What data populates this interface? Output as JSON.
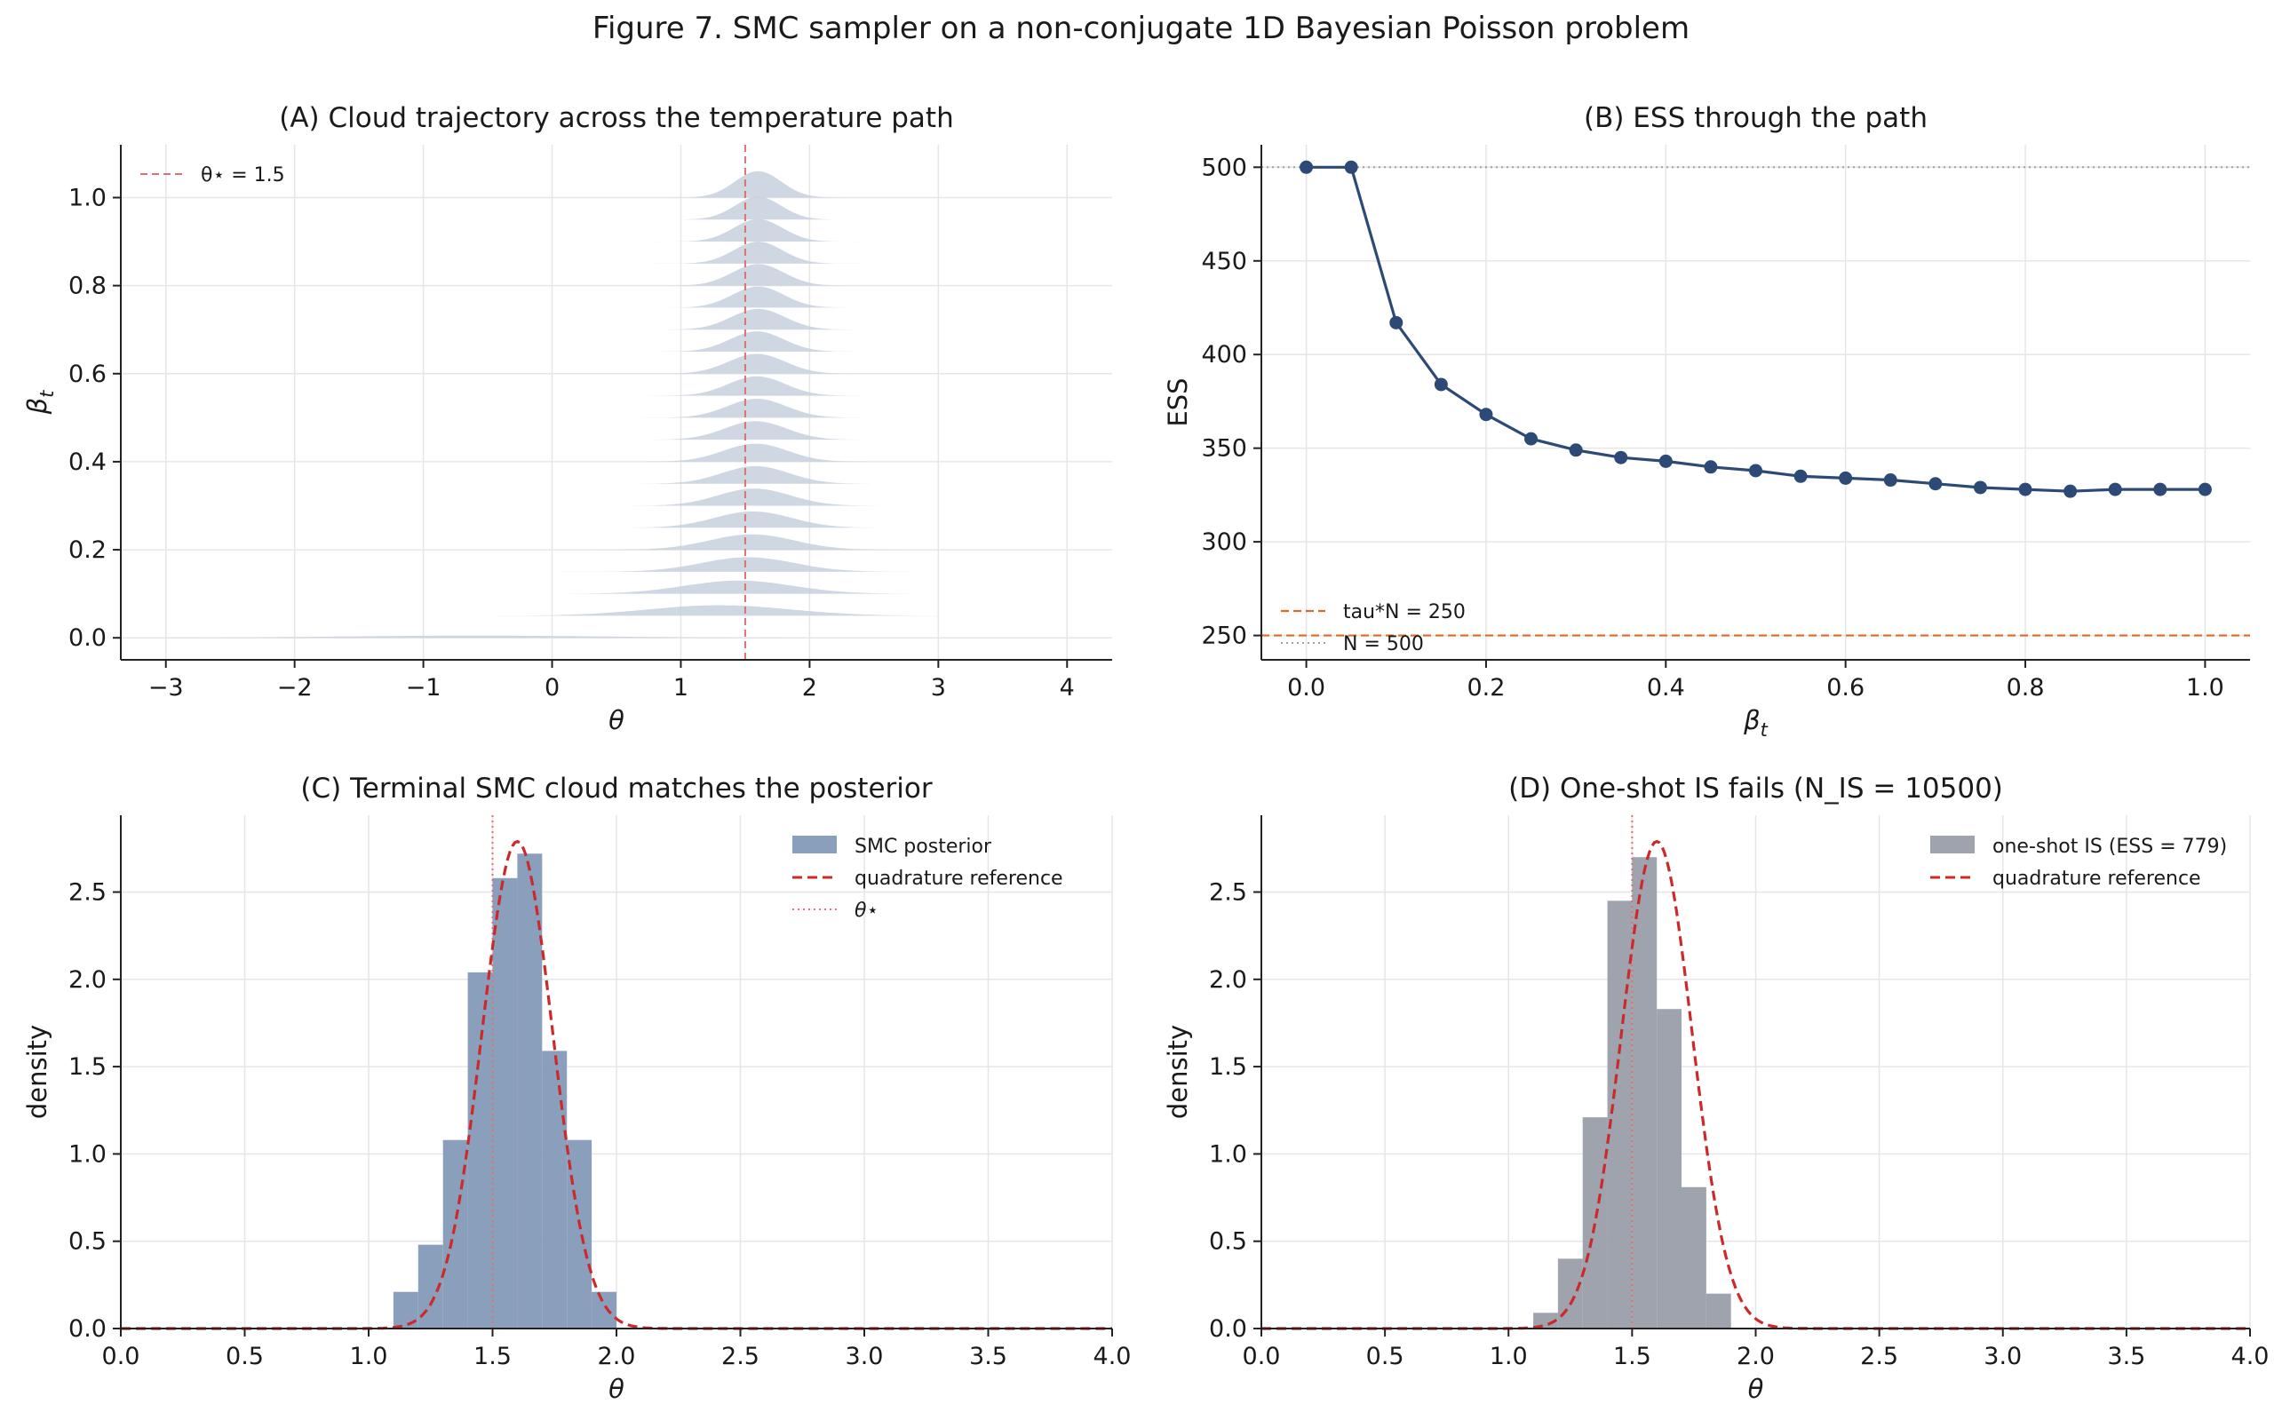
{
  "figure": {
    "title": "Figure 7. SMC sampler on a non-conjugate 1D Bayesian Poisson problem"
  },
  "colors": {
    "ridge_fill": "#c7d0de",
    "theta_star": "#e07070",
    "ess_line": "#2c4a75",
    "tau_line": "#dd6a20",
    "n_line": "#9aa0aa",
    "smc_hist": "#8a9fbc",
    "is_hist": "#9ea3ad",
    "quadrature": "#cc2a2a",
    "grid": "#e6e6e6",
    "axis": "#222222"
  },
  "chart_data": [
    {
      "id": "A",
      "type": "area",
      "title": "(A) Cloud trajectory across the temperature path",
      "xlabel": "θ",
      "ylabel": "β_t",
      "xlim": [
        -3.35,
        4.35
      ],
      "ylim": [
        -0.05,
        1.12
      ],
      "xticks": [
        -3,
        -2,
        -1,
        0,
        1,
        2,
        3,
        4
      ],
      "xtick_labels": [
        "−3",
        "−2",
        "−1",
        "0",
        "1",
        "2",
        "3",
        "4"
      ],
      "yticks": [
        0.0,
        0.2,
        0.4,
        0.6,
        0.8,
        1.0
      ],
      "ytick_labels": [
        "0.0",
        "0.2",
        "0.4",
        "0.6",
        "0.8",
        "1.0"
      ],
      "grid": true,
      "legend": {
        "placement": "top-left",
        "entries": [
          {
            "label": "θ⋆ = 1.5",
            "style": "dashed"
          }
        ]
      },
      "theta_star": 1.5,
      "ridges": [
        {
          "beta": 0.0,
          "mean": -0.6,
          "sd": 1.0,
          "peak": 0.005,
          "xmin": -3.0,
          "xmax": 1.8
        },
        {
          "beta": 0.05,
          "mean": 1.3,
          "sd": 0.55,
          "peak": 0.024,
          "xmin": -1.6,
          "xmax": 3.0
        },
        {
          "beta": 0.1,
          "mean": 1.45,
          "sd": 0.42,
          "peak": 0.03,
          "xmin": -0.7,
          "xmax": 3.0
        },
        {
          "beta": 0.15,
          "mean": 1.52,
          "sd": 0.36,
          "peak": 0.033,
          "xmin": -0.1,
          "xmax": 2.8
        },
        {
          "beta": 0.2,
          "mean": 1.55,
          "sd": 0.33,
          "peak": 0.035,
          "xmin": 0.2,
          "xmax": 2.7
        },
        {
          "beta": 0.25,
          "mean": 1.56,
          "sd": 0.3,
          "peak": 0.037,
          "xmin": 0.3,
          "xmax": 2.6
        },
        {
          "beta": 0.3,
          "mean": 1.57,
          "sd": 0.28,
          "peak": 0.039,
          "xmin": 0.4,
          "xmax": 2.6
        },
        {
          "beta": 0.35,
          "mean": 1.58,
          "sd": 0.26,
          "peak": 0.04,
          "xmin": 0.5,
          "xmax": 2.5
        },
        {
          "beta": 0.4,
          "mean": 1.58,
          "sd": 0.25,
          "peak": 0.041,
          "xmin": 0.6,
          "xmax": 2.5
        },
        {
          "beta": 0.45,
          "mean": 1.58,
          "sd": 0.24,
          "peak": 0.042,
          "xmin": 0.6,
          "xmax": 2.5
        },
        {
          "beta": 0.5,
          "mean": 1.59,
          "sd": 0.23,
          "peak": 0.043,
          "xmin": 0.7,
          "xmax": 2.4
        },
        {
          "beta": 0.55,
          "mean": 1.59,
          "sd": 0.22,
          "peak": 0.044,
          "xmin": 0.7,
          "xmax": 2.4
        },
        {
          "beta": 0.6,
          "mean": 1.59,
          "sd": 0.22,
          "peak": 0.045,
          "xmin": 0.7,
          "xmax": 2.4
        },
        {
          "beta": 0.65,
          "mean": 1.59,
          "sd": 0.21,
          "peak": 0.046,
          "xmin": 0.8,
          "xmax": 2.4
        },
        {
          "beta": 0.7,
          "mean": 1.6,
          "sd": 0.21,
          "peak": 0.047,
          "xmin": 0.8,
          "xmax": 2.4
        },
        {
          "beta": 0.75,
          "mean": 1.6,
          "sd": 0.2,
          "peak": 0.048,
          "xmin": 0.8,
          "xmax": 2.4
        },
        {
          "beta": 0.8,
          "mean": 1.6,
          "sd": 0.2,
          "peak": 0.049,
          "xmin": 0.8,
          "xmax": 2.4
        },
        {
          "beta": 0.85,
          "mean": 1.6,
          "sd": 0.19,
          "peak": 0.05,
          "xmin": 0.8,
          "xmax": 2.4
        },
        {
          "beta": 0.9,
          "mean": 1.6,
          "sd": 0.19,
          "peak": 0.051,
          "xmin": 0.8,
          "xmax": 2.4
        },
        {
          "beta": 0.95,
          "mean": 1.6,
          "sd": 0.18,
          "peak": 0.052,
          "xmin": 0.8,
          "xmax": 2.4
        },
        {
          "beta": 1.0,
          "mean": 1.6,
          "sd": 0.18,
          "peak": 0.06,
          "xmin": 0.9,
          "xmax": 2.3
        }
      ]
    },
    {
      "id": "B",
      "type": "line",
      "title": "(B) ESS through the path",
      "xlabel": "β_t",
      "ylabel": "ESS",
      "xlim": [
        -0.05,
        1.05
      ],
      "ylim": [
        237,
        512
      ],
      "xticks": [
        0.0,
        0.2,
        0.4,
        0.6,
        0.8,
        1.0
      ],
      "xtick_labels": [
        "0.0",
        "0.2",
        "0.4",
        "0.6",
        "0.8",
        "1.0"
      ],
      "yticks": [
        250,
        300,
        350,
        400,
        450,
        500
      ],
      "ytick_labels": [
        "250",
        "300",
        "350",
        "400",
        "450",
        "500"
      ],
      "grid": true,
      "legend": {
        "placement": "bottom-left",
        "entries": [
          {
            "label": "tau*N = 250",
            "style": "dashed"
          },
          {
            "label": "N = 500",
            "style": "dotted"
          }
        ]
      },
      "hlines": [
        {
          "y": 250,
          "label": "tau*N = 250"
        },
        {
          "y": 500,
          "label": "N = 500"
        }
      ],
      "x": [
        0.0,
        0.05,
        0.1,
        0.15,
        0.2,
        0.25,
        0.3,
        0.35,
        0.4,
        0.45,
        0.5,
        0.55,
        0.6,
        0.65,
        0.7,
        0.75,
        0.8,
        0.85,
        0.9,
        0.95,
        1.0
      ],
      "y": [
        500,
        500,
        417,
        384,
        368,
        355,
        349,
        345,
        343,
        340,
        338,
        335,
        334,
        333,
        331,
        329,
        328,
        327,
        328,
        328,
        328
      ]
    },
    {
      "id": "C",
      "type": "bar",
      "title": "(C) Terminal SMC cloud matches the posterior",
      "xlabel": "θ",
      "ylabel": "density",
      "xlim": [
        0.0,
        4.0
      ],
      "ylim": [
        0.0,
        2.94
      ],
      "xticks": [
        0.0,
        0.5,
        1.0,
        1.5,
        2.0,
        2.5,
        3.0,
        3.5,
        4.0
      ],
      "xtick_labels": [
        "0.0",
        "0.5",
        "1.0",
        "1.5",
        "2.0",
        "2.5",
        "3.0",
        "3.5",
        "4.0"
      ],
      "yticks": [
        0.0,
        0.5,
        1.0,
        1.5,
        2.0,
        2.5
      ],
      "ytick_labels": [
        "0.0",
        "0.5",
        "1.0",
        "1.5",
        "2.0",
        "2.5"
      ],
      "grid": true,
      "legend": {
        "placement": "top-right",
        "entries": [
          {
            "label": "SMC posterior",
            "style": "patch"
          },
          {
            "label": "quadrature reference",
            "style": "dashed"
          },
          {
            "label": "θ⋆",
            "style": "dotted"
          }
        ]
      },
      "bin_edges": [
        1.1,
        1.2,
        1.3,
        1.4,
        1.5,
        1.6,
        1.7,
        1.8,
        1.9,
        2.0
      ],
      "heights": [
        0.21,
        0.48,
        1.08,
        2.04,
        2.58,
        2.72,
        1.59,
        1.08,
        0.21
      ],
      "quadrature": {
        "mean": 1.6,
        "sd": 0.143,
        "peak": 2.79
      },
      "theta_star": 1.5
    },
    {
      "id": "D",
      "type": "bar",
      "title": "(D) One-shot IS fails (N_IS = 10500)",
      "xlabel": "θ",
      "ylabel": "density",
      "xlim": [
        0.0,
        4.0
      ],
      "ylim": [
        0.0,
        2.94
      ],
      "xticks": [
        0.0,
        0.5,
        1.0,
        1.5,
        2.0,
        2.5,
        3.0,
        3.5,
        4.0
      ],
      "xtick_labels": [
        "0.0",
        "0.5",
        "1.0",
        "1.5",
        "2.0",
        "2.5",
        "3.0",
        "3.5",
        "4.0"
      ],
      "yticks": [
        0.0,
        0.5,
        1.0,
        1.5,
        2.0,
        2.5
      ],
      "ytick_labels": [
        "0.0",
        "0.5",
        "1.0",
        "1.5",
        "2.0",
        "2.5"
      ],
      "grid": true,
      "legend": {
        "placement": "top-right",
        "entries": [
          {
            "label": "one-shot IS (ESS = 779)",
            "style": "patch"
          },
          {
            "label": "quadrature reference",
            "style": "dashed"
          }
        ]
      },
      "bin_edges": [
        1.1,
        1.2,
        1.3,
        1.4,
        1.5,
        1.6,
        1.7,
        1.8,
        1.9,
        2.0
      ],
      "heights": [
        0.09,
        0.4,
        1.21,
        2.45,
        2.7,
        1.83,
        0.81,
        0.2,
        0.0
      ],
      "quadrature": {
        "mean": 1.6,
        "sd": 0.143,
        "peak": 2.79
      },
      "theta_star": 1.5
    }
  ]
}
